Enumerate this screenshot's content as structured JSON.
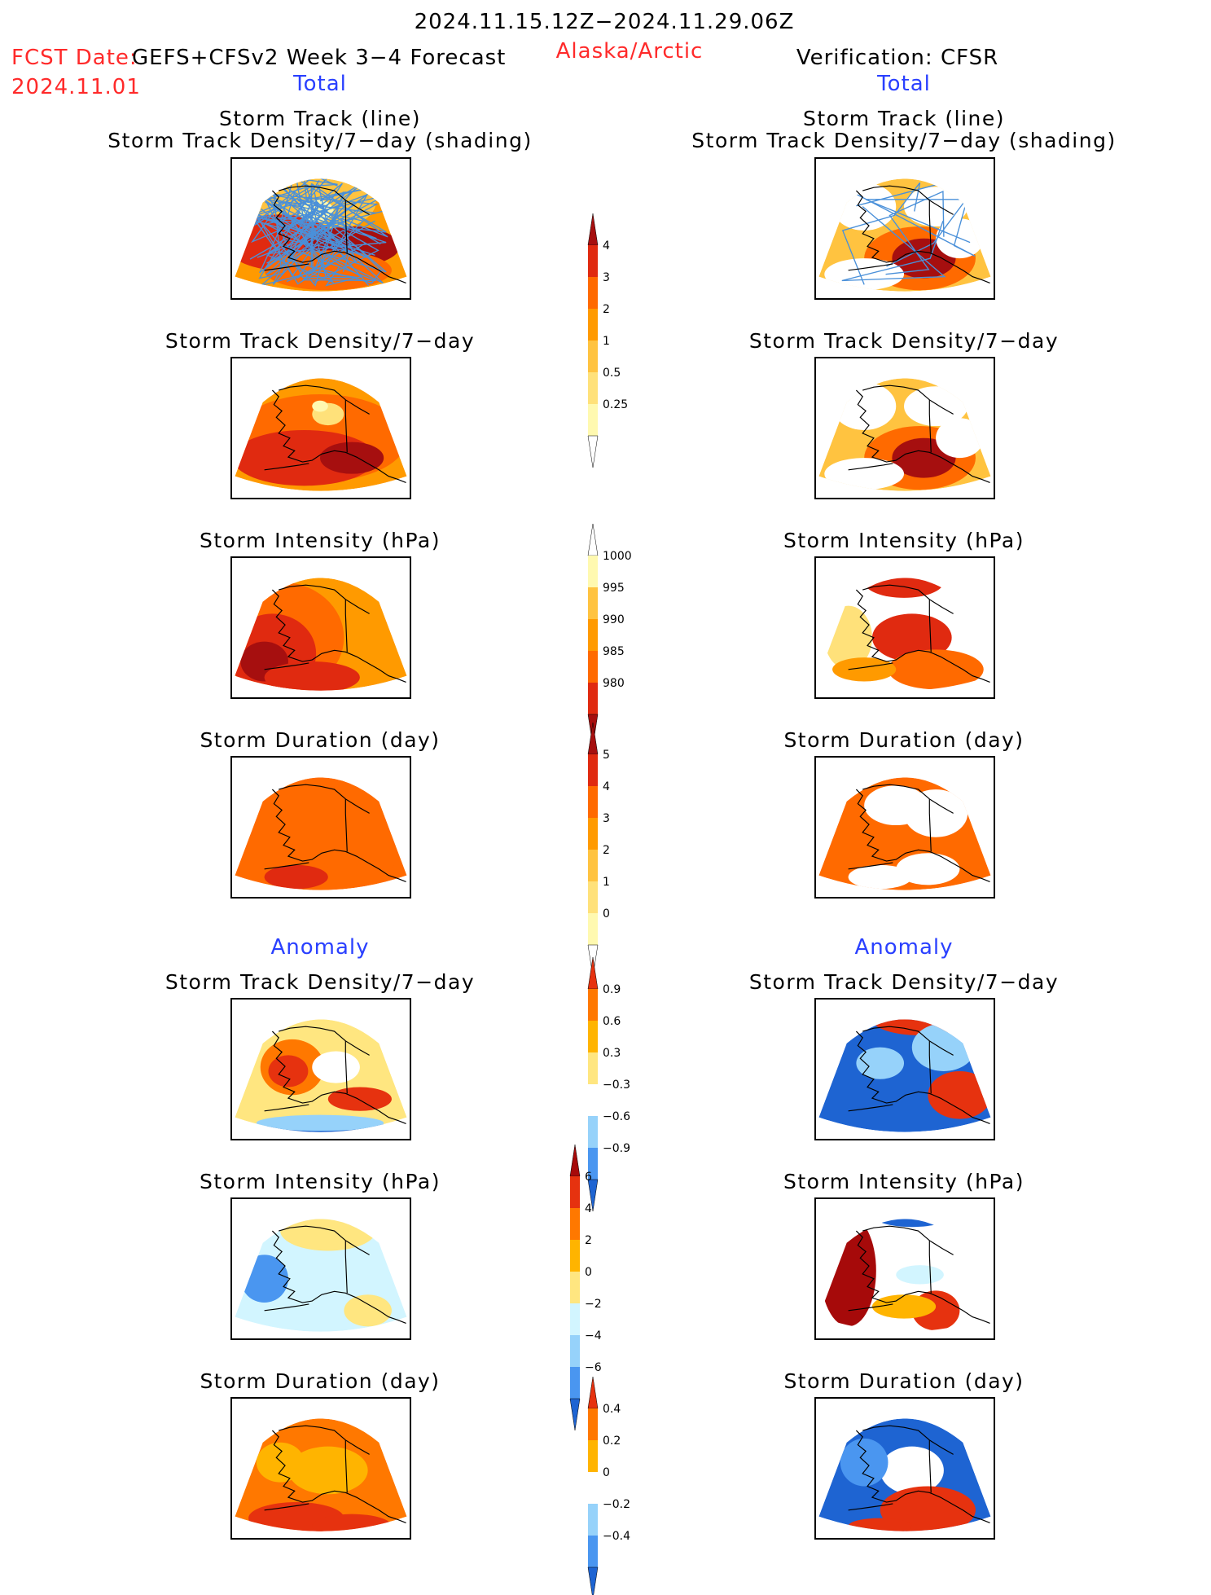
{
  "header": {
    "date_range": "2024.11.15.12Z−2024.11.29.06Z",
    "fcst_date_label": "FCST Date:",
    "forecast_name": "GEFS+CFSv2 Week 3−4 Forecast",
    "fcst_date_value": "2024.11.01",
    "region": "Alaska/Arctic",
    "verification": "Verification: CFSR"
  },
  "sections": {
    "total_left": "Total",
    "total_right": "Total",
    "anomaly_left": "Anomaly",
    "anomaly_right": "Anomaly"
  },
  "panels": {
    "track_title_1": "Storm Track (line)",
    "track_title_2": "Storm Track Density/7−day (shading)",
    "density": "Storm Track Density/7−day",
    "intensity": "Storm Intensity (hPa)",
    "duration": "Storm Duration (day)"
  },
  "colorbars": {
    "density_total": [
      "4",
      "3",
      "2",
      "1",
      "0.5",
      "0.25"
    ],
    "intensity_total": [
      "1000",
      "995",
      "990",
      "985",
      "980"
    ],
    "duration_total": [
      "5",
      "4",
      "3",
      "2",
      "1",
      "0"
    ],
    "density_anomaly": [
      "0.9",
      "0.6",
      "0.3",
      "−0.3",
      "−0.6",
      "−0.9"
    ],
    "intensity_anomaly": [
      "6",
      "4",
      "2",
      "0",
      "−2",
      "−4",
      "−6"
    ],
    "duration_anomaly": [
      "0.4",
      "0.2",
      "0",
      "−0.2",
      "−0.4"
    ]
  },
  "colors": {
    "warm_scale": [
      "#fff9b0",
      "#ffe17a",
      "#ffc340",
      "#ff9a00",
      "#ff6a00",
      "#e02a10",
      "#a60f0f"
    ],
    "anomaly_scale": [
      "#1e64d2",
      "#4a96f0",
      "#96d2fa",
      "#d2f5ff",
      "#ffffff",
      "#ffe680",
      "#ffb400",
      "#ff7800",
      "#e6320f",
      "#a60a0a"
    ],
    "title_red": "#ff2a2a",
    "title_blue": "#2a40ff",
    "track_line": "#4a90d9"
  }
}
